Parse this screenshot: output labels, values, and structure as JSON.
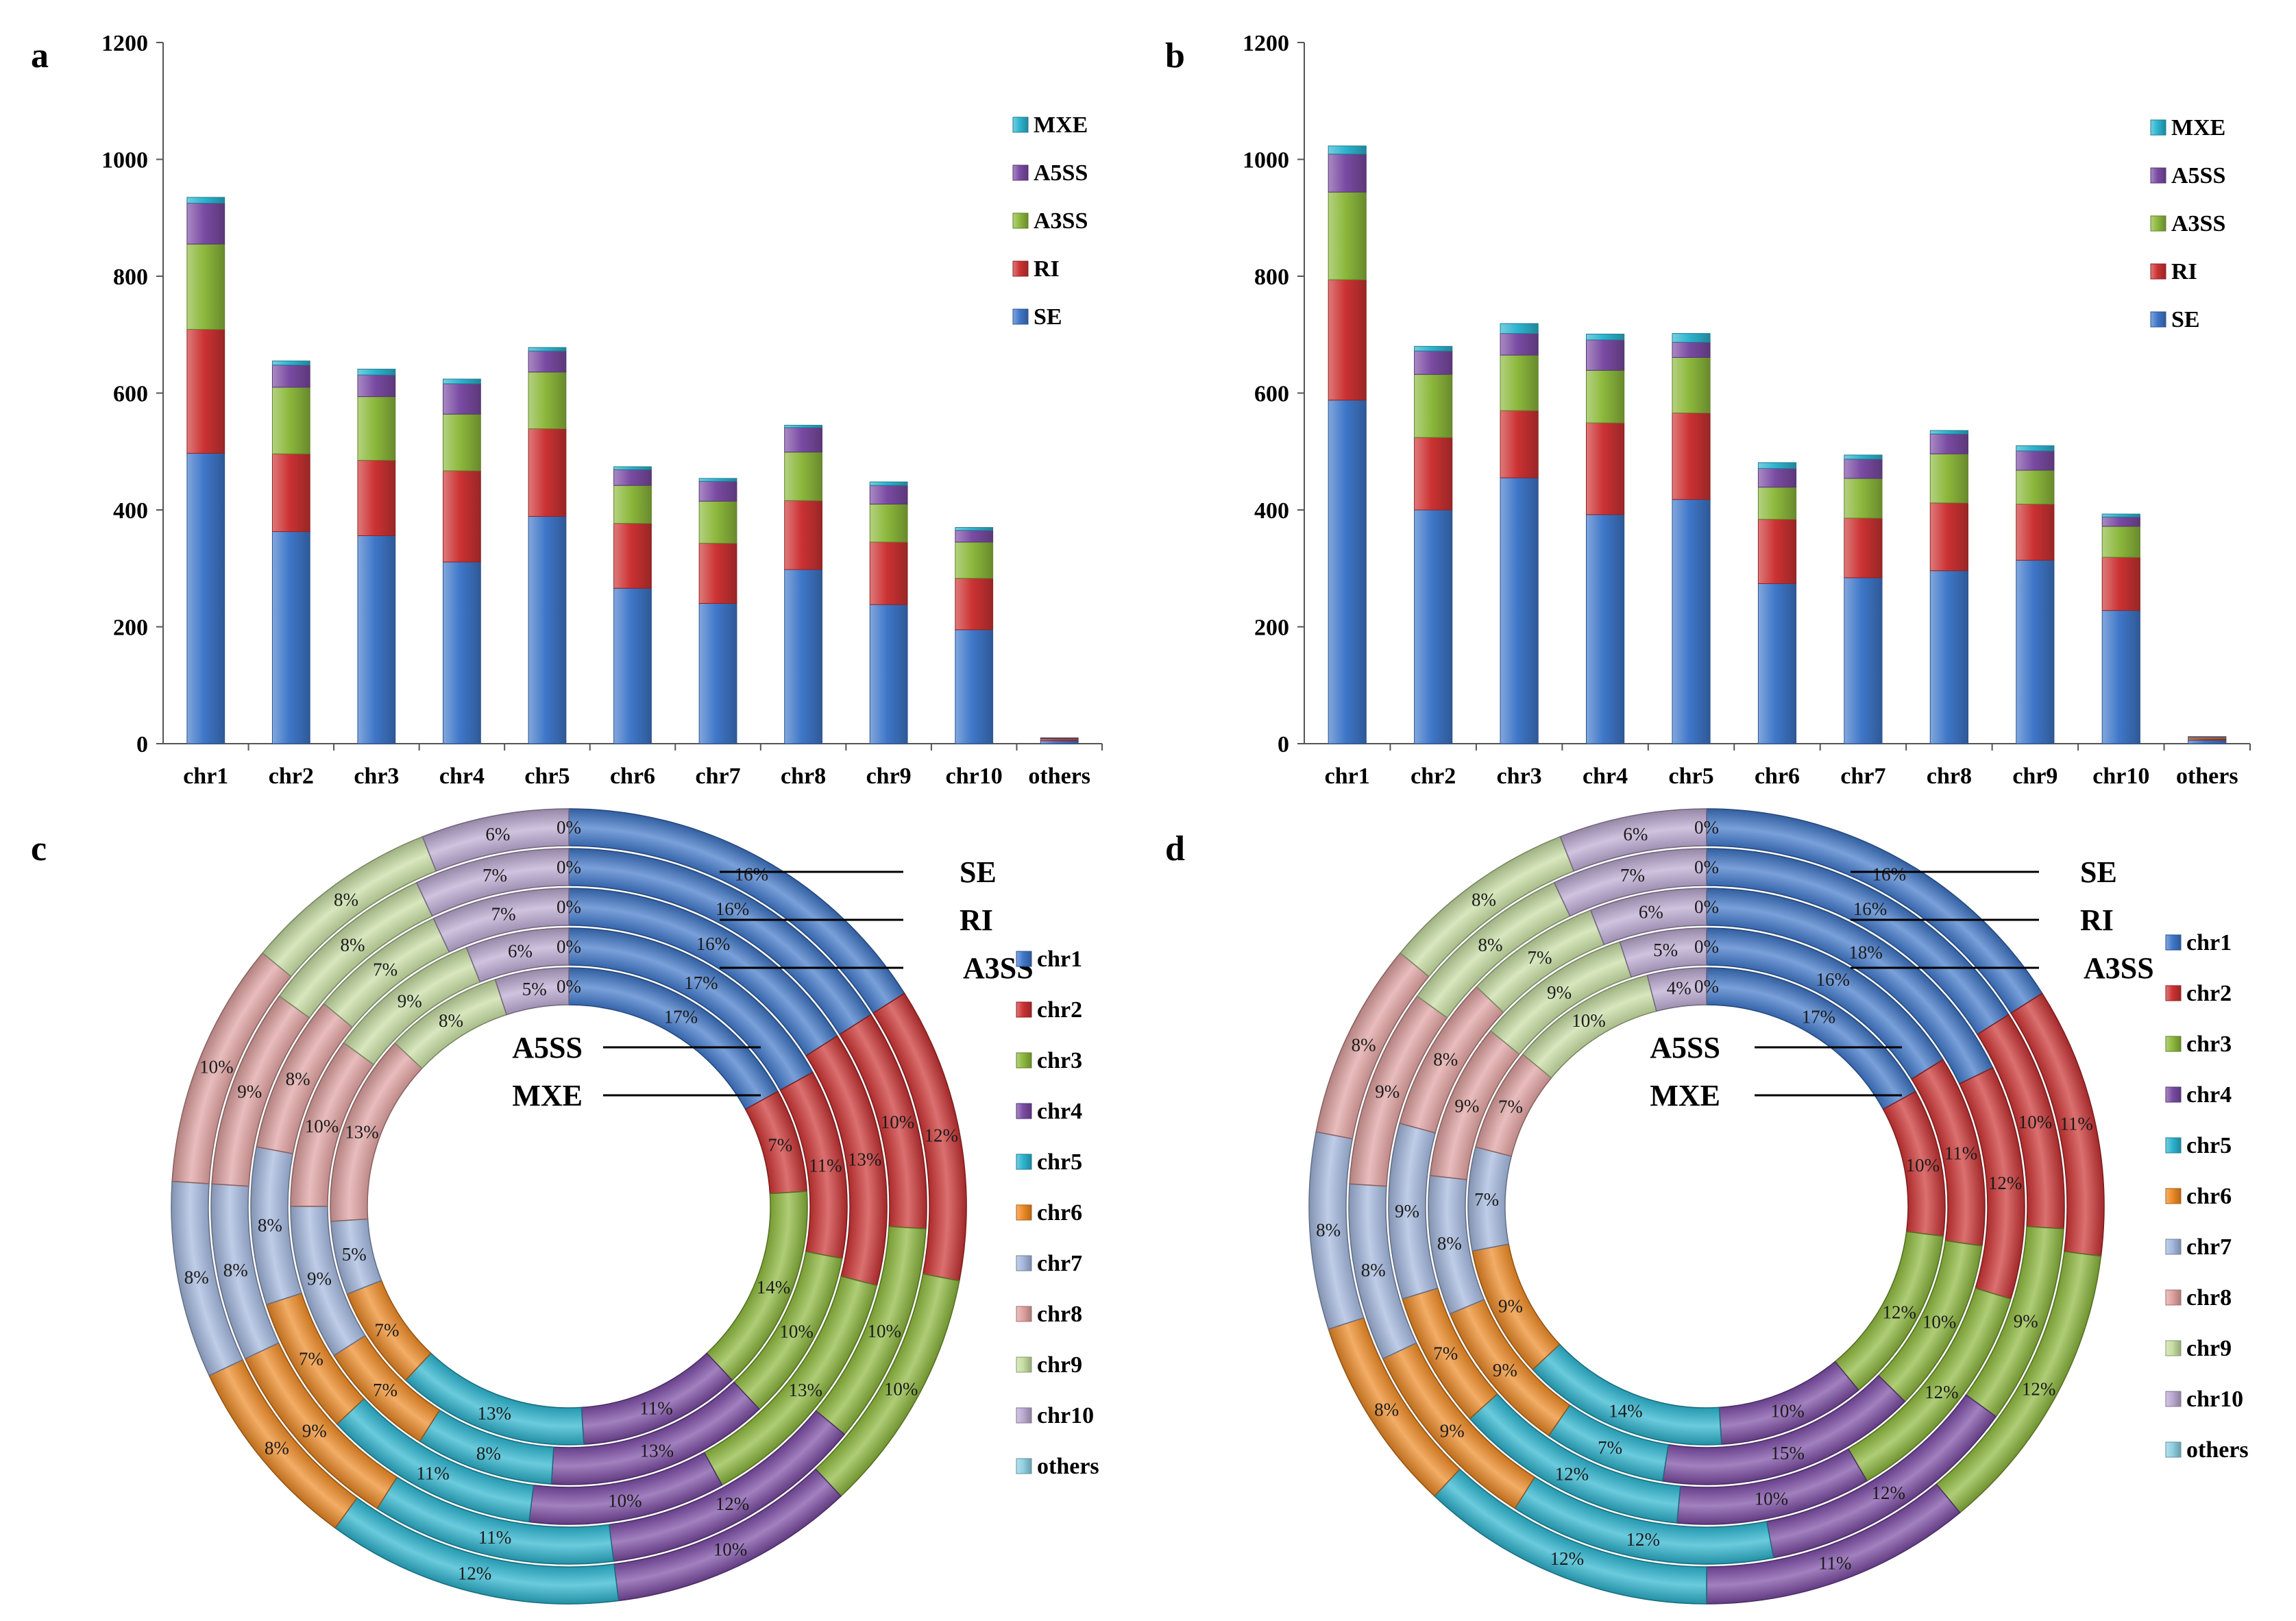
{
  "colors": {
    "SE": "#3f77c9",
    "RI": "#cc3233",
    "A3SS": "#8cb83c",
    "A5SS": "#7a4ba3",
    "MXE": "#2cb4cf",
    "chr1": "#3f77c9",
    "chr2": "#cc3233",
    "chr3": "#8cb83c",
    "chr4": "#7a4ba3",
    "chr5": "#2cb4cf",
    "chr6": "#ee8a24",
    "chr7": "#a3b8de",
    "chr8": "#e0a1a0",
    "chr9": "#c7dda2",
    "chr10": "#bba9d1",
    "others": "#8fd0e2"
  },
  "chart_data": [
    {
      "type": "bar",
      "stacked": true,
      "panel": "a",
      "categories": [
        "chr1",
        "chr2",
        "chr3",
        "chr4",
        "chr5",
        "chr6",
        "chr7",
        "chr8",
        "chr9",
        "chr10",
        "others"
      ],
      "ylim": [
        0,
        1200
      ],
      "yticks": [
        "0",
        "200",
        "400",
        "600",
        "800",
        "1000",
        "1200"
      ],
      "legend": [
        "MXE",
        "A5SS",
        "A3SS",
        "RI",
        "SE"
      ],
      "series": [
        {
          "name": "SE",
          "values": [
            497,
            363,
            356,
            311,
            389,
            266,
            240,
            298,
            238,
            195,
            5
          ]
        },
        {
          "name": "RI",
          "values": [
            212,
            133,
            129,
            156,
            150,
            111,
            103,
            118,
            107,
            88,
            3
          ]
        },
        {
          "name": "A3SS",
          "values": [
            146,
            114,
            109,
            97,
            97,
            65,
            72,
            83,
            65,
            62,
            1
          ]
        },
        {
          "name": "A5SS",
          "values": [
            70,
            38,
            37,
            52,
            36,
            27,
            34,
            42,
            32,
            20,
            1
          ]
        },
        {
          "name": "MXE",
          "values": [
            10,
            7,
            10,
            8,
            6,
            5,
            5,
            4,
            6,
            5,
            0
          ]
        }
      ]
    },
    {
      "type": "bar",
      "stacked": true,
      "panel": "b",
      "categories": [
        "chr1",
        "chr2",
        "chr3",
        "chr4",
        "chr5",
        "chr6",
        "chr7",
        "chr8",
        "chr9",
        "chr10",
        "others"
      ],
      "ylim": [
        0,
        1200
      ],
      "yticks": [
        "0",
        "200",
        "400",
        "600",
        "800",
        "1000",
        "1200"
      ],
      "legend": [
        "MXE",
        "A5SS",
        "A3SS",
        "RI",
        "SE"
      ],
      "series": [
        {
          "name": "SE",
          "values": [
            588,
            400,
            455,
            392,
            418,
            274,
            284,
            296,
            314,
            228,
            6
          ]
        },
        {
          "name": "RI",
          "values": [
            206,
            124,
            115,
            157,
            148,
            110,
            102,
            116,
            96,
            91,
            3
          ]
        },
        {
          "name": "A3SS",
          "values": [
            150,
            108,
            95,
            90,
            95,
            55,
            68,
            84,
            58,
            53,
            2
          ]
        },
        {
          "name": "A5SS",
          "values": [
            65,
            40,
            37,
            52,
            26,
            32,
            33,
            34,
            33,
            16,
            1
          ]
        },
        {
          "name": "MXE",
          "values": [
            14,
            8,
            17,
            10,
            15,
            10,
            7,
            6,
            9,
            5,
            0
          ]
        }
      ]
    },
    {
      "type": "pie",
      "subtype": "multi-ring donut",
      "panel": "c",
      "categories": [
        "chr1",
        "chr2",
        "chr3",
        "chr4",
        "chr5",
        "chr6",
        "chr7",
        "chr8",
        "chr9",
        "chr10",
        "others"
      ],
      "ring_order_outer_to_inner": [
        "SE",
        "RI",
        "A3SS",
        "A5SS",
        "MXE"
      ],
      "series": [
        {
          "name": "SE",
          "values": [
            16,
            12,
            10,
            10,
            12,
            8,
            8,
            10,
            8,
            6,
            0
          ],
          "labels": [
            "16%",
            "12%",
            "10%",
            "10%",
            "12%",
            "8%",
            "8%",
            "10%",
            "8%",
            "6%",
            "0%"
          ]
        },
        {
          "name": "RI",
          "values": [
            16,
            10,
            10,
            12,
            11,
            9,
            8,
            9,
            8,
            7,
            0
          ],
          "labels": [
            "16%",
            "10%",
            "10%",
            "12%",
            "11%",
            "9%",
            "8%",
            "9%",
            "8%",
            "7%",
            "0%"
          ]
        },
        {
          "name": "A3SS",
          "values": [
            16,
            13,
            13,
            10,
            11,
            7,
            8,
            8,
            7,
            7,
            0
          ],
          "labels": [
            "16%",
            "13%",
            "13%",
            "10%",
            "11%",
            "7%",
            "8%",
            "8%",
            "7%",
            "7%",
            "0%"
          ]
        },
        {
          "name": "A5SS",
          "values": [
            17,
            11,
            10,
            13,
            8,
            7,
            9,
            10,
            9,
            6,
            0
          ],
          "labels": [
            "17%",
            "11%",
            "10%",
            "13%",
            "8%",
            "7%",
            "9%",
            "10%",
            "9%",
            "6%",
            "0%"
          ]
        },
        {
          "name": "MXE",
          "values": [
            17,
            7,
            14,
            11,
            13,
            7,
            5,
            13,
            8,
            5,
            0
          ],
          "labels": [
            "17%",
            "7%",
            "14%",
            "11%",
            "13%",
            "7%",
            "5%",
            "13%",
            "8%",
            "5%",
            "0%"
          ]
        }
      ]
    },
    {
      "type": "pie",
      "subtype": "multi-ring donut",
      "panel": "d",
      "categories": [
        "chr1",
        "chr2",
        "chr3",
        "chr4",
        "chr5",
        "chr6",
        "chr7",
        "chr8",
        "chr9",
        "chr10",
        "others"
      ],
      "ring_order_outer_to_inner": [
        "SE",
        "RI",
        "A3SS",
        "A5SS",
        "MXE"
      ],
      "series": [
        {
          "name": "SE",
          "values": [
            16,
            11,
            12,
            11,
            12,
            8,
            8,
            8,
            8,
            6,
            0
          ],
          "labels": [
            "16%",
            "11%",
            "12%",
            "11%",
            "12%",
            "8%",
            "8%",
            "8%",
            "8%",
            "6%",
            "0%"
          ]
        },
        {
          "name": "RI",
          "values": [
            16,
            10,
            9,
            12,
            12,
            9,
            8,
            9,
            8,
            7,
            0
          ],
          "labels": [
            "16%",
            "10%",
            "9%",
            "12%",
            "12%",
            "9%",
            "8%",
            "9%",
            "8%",
            "7%",
            "0%"
          ]
        },
        {
          "name": "A3SS",
          "values": [
            18,
            12,
            12,
            10,
            12,
            7,
            9,
            8,
            7,
            6,
            0
          ],
          "labels": [
            "18%",
            "12%",
            "12%",
            "10%",
            "12%",
            "7%",
            "9%",
            "8%",
            "7%",
            "6%",
            "0%"
          ]
        },
        {
          "name": "A5SS",
          "values": [
            16,
            11,
            10,
            15,
            7,
            9,
            8,
            9,
            9,
            5,
            0
          ],
          "labels": [
            "16%",
            "11%",
            "10%",
            "15%",
            "7%",
            "9%",
            "8%",
            "9%",
            "9%",
            "5%",
            "0%"
          ]
        },
        {
          "name": "MXE",
          "values": [
            17,
            10,
            12,
            10,
            14,
            9,
            7,
            7,
            10,
            4,
            0
          ],
          "labels": [
            "17%",
            "10%",
            "12%",
            "10%",
            "14%",
            "9%",
            "7%",
            "7%",
            "10%",
            "4%",
            "0%"
          ]
        }
      ]
    }
  ]
}
